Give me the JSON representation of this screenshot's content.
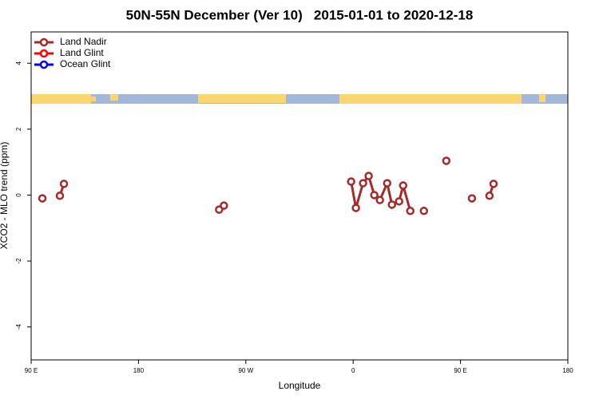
{
  "chart_data": {
    "type": "line",
    "title": "50N-55N December (Ver 10)   2015-01-01 to 2020-12-18",
    "x_label": "Longitude",
    "y_label": "XCO2 - MLO trend (ppm)",
    "xlim": [
      90,
      540
    ],
    "ylim": [
      -5,
      4.95
    ],
    "xticks": [
      {
        "value": 90,
        "label": "90 E"
      },
      180,
      {
        "value": 270,
        "label": "90 W"
      },
      {
        "value": 360,
        "label": "0"
      },
      {
        "value": 450,
        "label": "90 E"
      },
      {
        "value": 540,
        "label": "180"
      }
    ],
    "yticks": [
      -4,
      -2,
      0,
      2,
      4
    ],
    "legend_position": "top-left",
    "series": [
      {
        "name": "Land Nadir",
        "color": "#a52a2a",
        "x": [
          99.4,
          null,
          114.1,
          117.5,
          null,
          247.6,
          251.6,
          null,
          358.3,
          362.3,
          368.3,
          373.0,
          377.7,
          382.4,
          388.5,
          392.5,
          398.5,
          401.9,
          407.9,
          null,
          419.3,
          null,
          438.1,
          null,
          459.6,
          null,
          474.3,
          477.7
        ],
        "values": [
          -0.1,
          null,
          -0.02,
          0.34,
          null,
          -0.44,
          -0.32,
          null,
          0.41,
          -0.39,
          0.36,
          0.58,
          0.0,
          -0.15,
          0.36,
          -0.29,
          -0.19,
          0.29,
          -0.48,
          null,
          -0.48,
          null,
          1.04,
          null,
          -0.1,
          null,
          -0.02,
          0.34
        ]
      },
      {
        "name": "Land Glint",
        "color": "#ff0000",
        "x": [],
        "values": []
      },
      {
        "name": "Ocean Glint",
        "color": "#0000ff",
        "x": [],
        "values": []
      }
    ]
  }
}
